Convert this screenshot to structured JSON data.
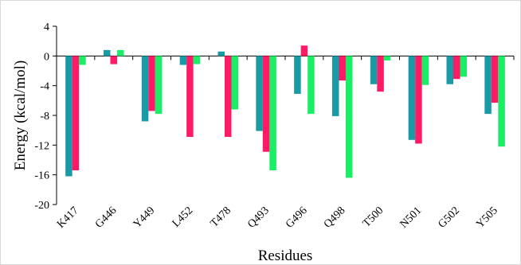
{
  "chart_data": {
    "type": "bar",
    "title": "",
    "xlabel": "Residues",
    "ylabel": "Energy (kcal/mol)",
    "categories": [
      "K417",
      "G446",
      "Y449",
      "L452",
      "T478",
      "Q493",
      "G496",
      "Q498",
      "T500",
      "N501",
      "G502",
      "Y505"
    ],
    "ylim": [
      -20,
      4
    ],
    "yticks": [
      4,
      0,
      -4,
      -8,
      -12,
      -16,
      -20
    ],
    "grid": false,
    "legend": "none",
    "series": [
      {
        "color": "#1a9aa6",
        "values": [
          -16.2,
          0.8,
          -8.8,
          -1.2,
          0.6,
          -10.1,
          -5.1,
          -8.1,
          -3.8,
          -11.3,
          -3.8,
          -7.8
        ]
      },
      {
        "color": "#ff1a66",
        "values": [
          -15.4,
          -1.1,
          -7.4,
          -10.9,
          -10.9,
          -12.9,
          1.4,
          -3.3,
          -4.8,
          -11.8,
          -3.1,
          -6.3
        ]
      },
      {
        "color": "#1aee66",
        "values": [
          -1.2,
          0.8,
          -7.8,
          -1.1,
          -7.2,
          -15.4,
          -7.8,
          -16.4,
          -0.6,
          -3.9,
          -2.8,
          -12.2
        ]
      }
    ]
  }
}
